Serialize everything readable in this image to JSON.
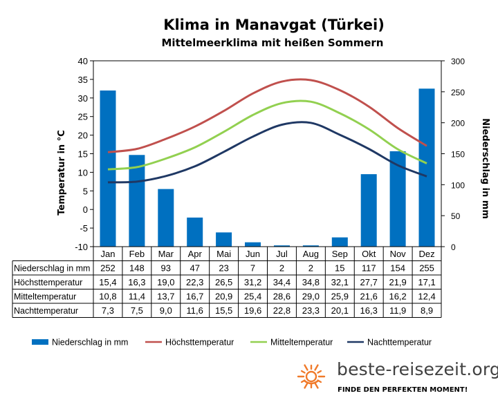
{
  "chart_data": {
    "type": "bar",
    "title": "Klima in Manavgat (Türkei)",
    "subtitle": "Mittelmeerklima mit heißen Sommern",
    "categories": [
      "Jan",
      "Feb",
      "Mar",
      "Apr",
      "Mai",
      "Jun",
      "Jul",
      "Aug",
      "Sep",
      "Okt",
      "Nov",
      "Dez"
    ],
    "ylabel_left": "Temperatur in °C",
    "ylabel_right": "Niederschlag in mm",
    "ylim_left": [
      -10,
      40
    ],
    "ylim_right": [
      0,
      300
    ],
    "yticks_left": [
      "40",
      "35",
      "30",
      "25",
      "20",
      "15",
      "10",
      "5",
      "0",
      "-5",
      "-10"
    ],
    "yticks_right": [
      "300",
      "250",
      "200",
      "150",
      "100",
      "50",
      "0"
    ],
    "grid": false,
    "legend_position": "bottom",
    "series": [
      {
        "name": "Niederschlag in mm",
        "type": "bar",
        "axis": "right",
        "color": "#0070C0",
        "values": [
          252,
          148,
          93,
          47,
          23,
          7,
          2,
          2,
          15,
          117,
          154,
          255
        ],
        "labels": [
          "252",
          "148",
          "93",
          "47",
          "23",
          "7",
          "2",
          "2",
          "15",
          "117",
          "154",
          "255"
        ]
      },
      {
        "name": "Höchsttemperatur",
        "type": "line",
        "axis": "left",
        "color": "#C0504D",
        "values": [
          15.4,
          16.3,
          19.0,
          22.3,
          26.5,
          31.2,
          34.4,
          34.8,
          32.1,
          27.7,
          21.9,
          17.1
        ],
        "labels": [
          "15,4",
          "16,3",
          "19,0",
          "22,3",
          "26,5",
          "31,2",
          "34,4",
          "34,8",
          "32,1",
          "27,7",
          "21,9",
          "17,1"
        ]
      },
      {
        "name": "Mitteltemperatur",
        "type": "line",
        "axis": "left",
        "color": "#92D050",
        "values": [
          10.8,
          11.4,
          13.7,
          16.7,
          20.9,
          25.4,
          28.6,
          29.0,
          25.9,
          21.6,
          16.2,
          12.4
        ],
        "labels": [
          "10,8",
          "11,4",
          "13,7",
          "16,7",
          "20,9",
          "25,4",
          "28,6",
          "29,0",
          "25,9",
          "21,6",
          "16,2",
          "12,4"
        ]
      },
      {
        "name": "Nachttemperatur",
        "type": "line",
        "axis": "left",
        "color": "#1F3864",
        "values": [
          7.3,
          7.5,
          9.0,
          11.6,
          15.5,
          19.6,
          22.8,
          23.3,
          20.1,
          16.3,
          11.9,
          8.9
        ],
        "labels": [
          "7,3",
          "7,5",
          "9,0",
          "11,6",
          "15,5",
          "19,6",
          "22,8",
          "23,3",
          "20,1",
          "16,3",
          "11,9",
          "8,9"
        ]
      }
    ]
  },
  "branding": {
    "site": "beste-reisezeit.org",
    "tagline": "FINDE DEN PERFEKTEN MOMENT!",
    "sun_color": "#F07A2A"
  }
}
